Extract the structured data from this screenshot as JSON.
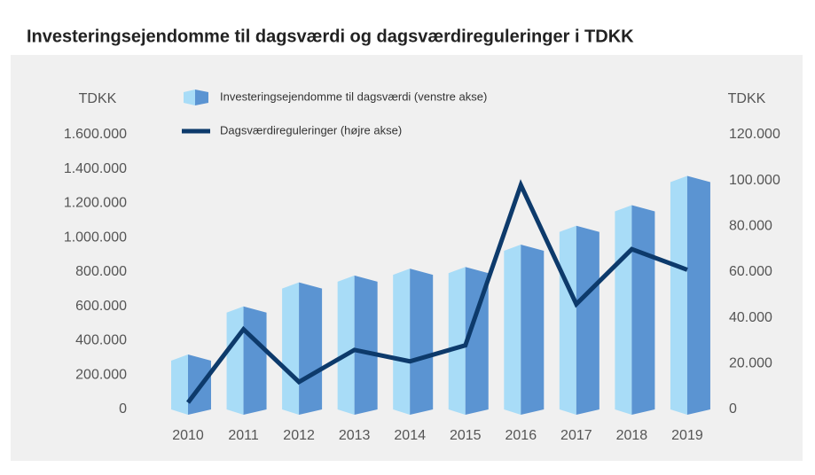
{
  "chart_data": {
    "type": "bar_line",
    "title": "Investeringsejendomme til dagsværdi og dagsværdireguleringer i TDKK",
    "ylabel": "TDKK",
    "y2label": "TDKK",
    "categories": [
      "2010",
      "2011",
      "2012",
      "2013",
      "2014",
      "2015",
      "2016",
      "2017",
      "2018",
      "2019"
    ],
    "series": [
      {
        "name": "Investeringsejendomme til dagsværdi (venstre akse)",
        "type": "bar",
        "color": "#a8dcf7",
        "side_color": "#5b94d2",
        "values": [
          320000,
          600000,
          740000,
          780000,
          820000,
          830000,
          960000,
          1070000,
          1190000,
          1360000
        ]
      },
      {
        "name": "Dagsværdireguleringer (højre akse)",
        "type": "line",
        "axis": "y2",
        "color": "#0d3a6b",
        "values": [
          3000,
          35000,
          12000,
          26000,
          21000,
          28000,
          98000,
          46000,
          70000,
          61000
        ]
      }
    ],
    "ylim": [
      0,
      1600000
    ],
    "yticks": [
      0,
      {
        "value": 200000,
        "label": "200.000"
      },
      {
        "value": 400000,
        "label": "400.000"
      },
      {
        "value": 600000,
        "label": "600.000"
      },
      {
        "value": 800000,
        "label": "800.000"
      },
      {
        "value": 1000000,
        "label": "1.000.000"
      },
      {
        "value": 1200000,
        "label": "1.200.000"
      },
      {
        "value": 1400000,
        "label": "1.400.000"
      },
      {
        "value": 1600000,
        "label": "1.600.000"
      }
    ],
    "y2lim": [
      0,
      120000
    ],
    "y2ticks": [
      0,
      {
        "value": 20000,
        "label": "20.000"
      },
      {
        "value": 40000,
        "label": "40.000"
      },
      {
        "value": 60000,
        "label": "60.000"
      },
      {
        "value": 80000,
        "label": "80.000"
      },
      {
        "value": 100000,
        "label": "100.000"
      },
      {
        "value": 120000,
        "label": "120.000"
      }
    ]
  }
}
